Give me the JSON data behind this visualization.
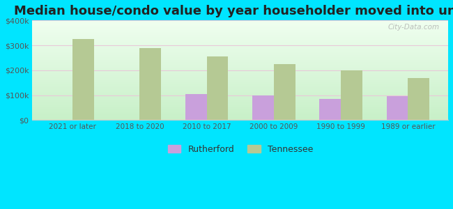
{
  "title": "Median house/condo value by year householder moved into unit",
  "categories": [
    "2021 or later",
    "2018 to 2020",
    "2010 to 2017",
    "2000 to 2009",
    "1990 to 1999",
    "1989 or earlier"
  ],
  "rutherford_values": [
    null,
    null,
    105000,
    98000,
    85000,
    96000
  ],
  "tennessee_values": [
    325000,
    288000,
    255000,
    225000,
    198000,
    168000
  ],
  "rutherford_color": "#c9a0dc",
  "tennessee_color": "#b5c994",
  "background_top": "#f0fff0",
  "background_bottom": "#c8f0c8",
  "outer_background": "#00e5ff",
  "ylim": [
    0,
    400000
  ],
  "yticks": [
    0,
    100000,
    200000,
    300000,
    400000
  ],
  "ytick_labels": [
    "$0",
    "$100k",
    "$200k",
    "$300k",
    "$400k"
  ],
  "bar_width": 0.32,
  "title_fontsize": 13,
  "watermark": "City-Data.com"
}
